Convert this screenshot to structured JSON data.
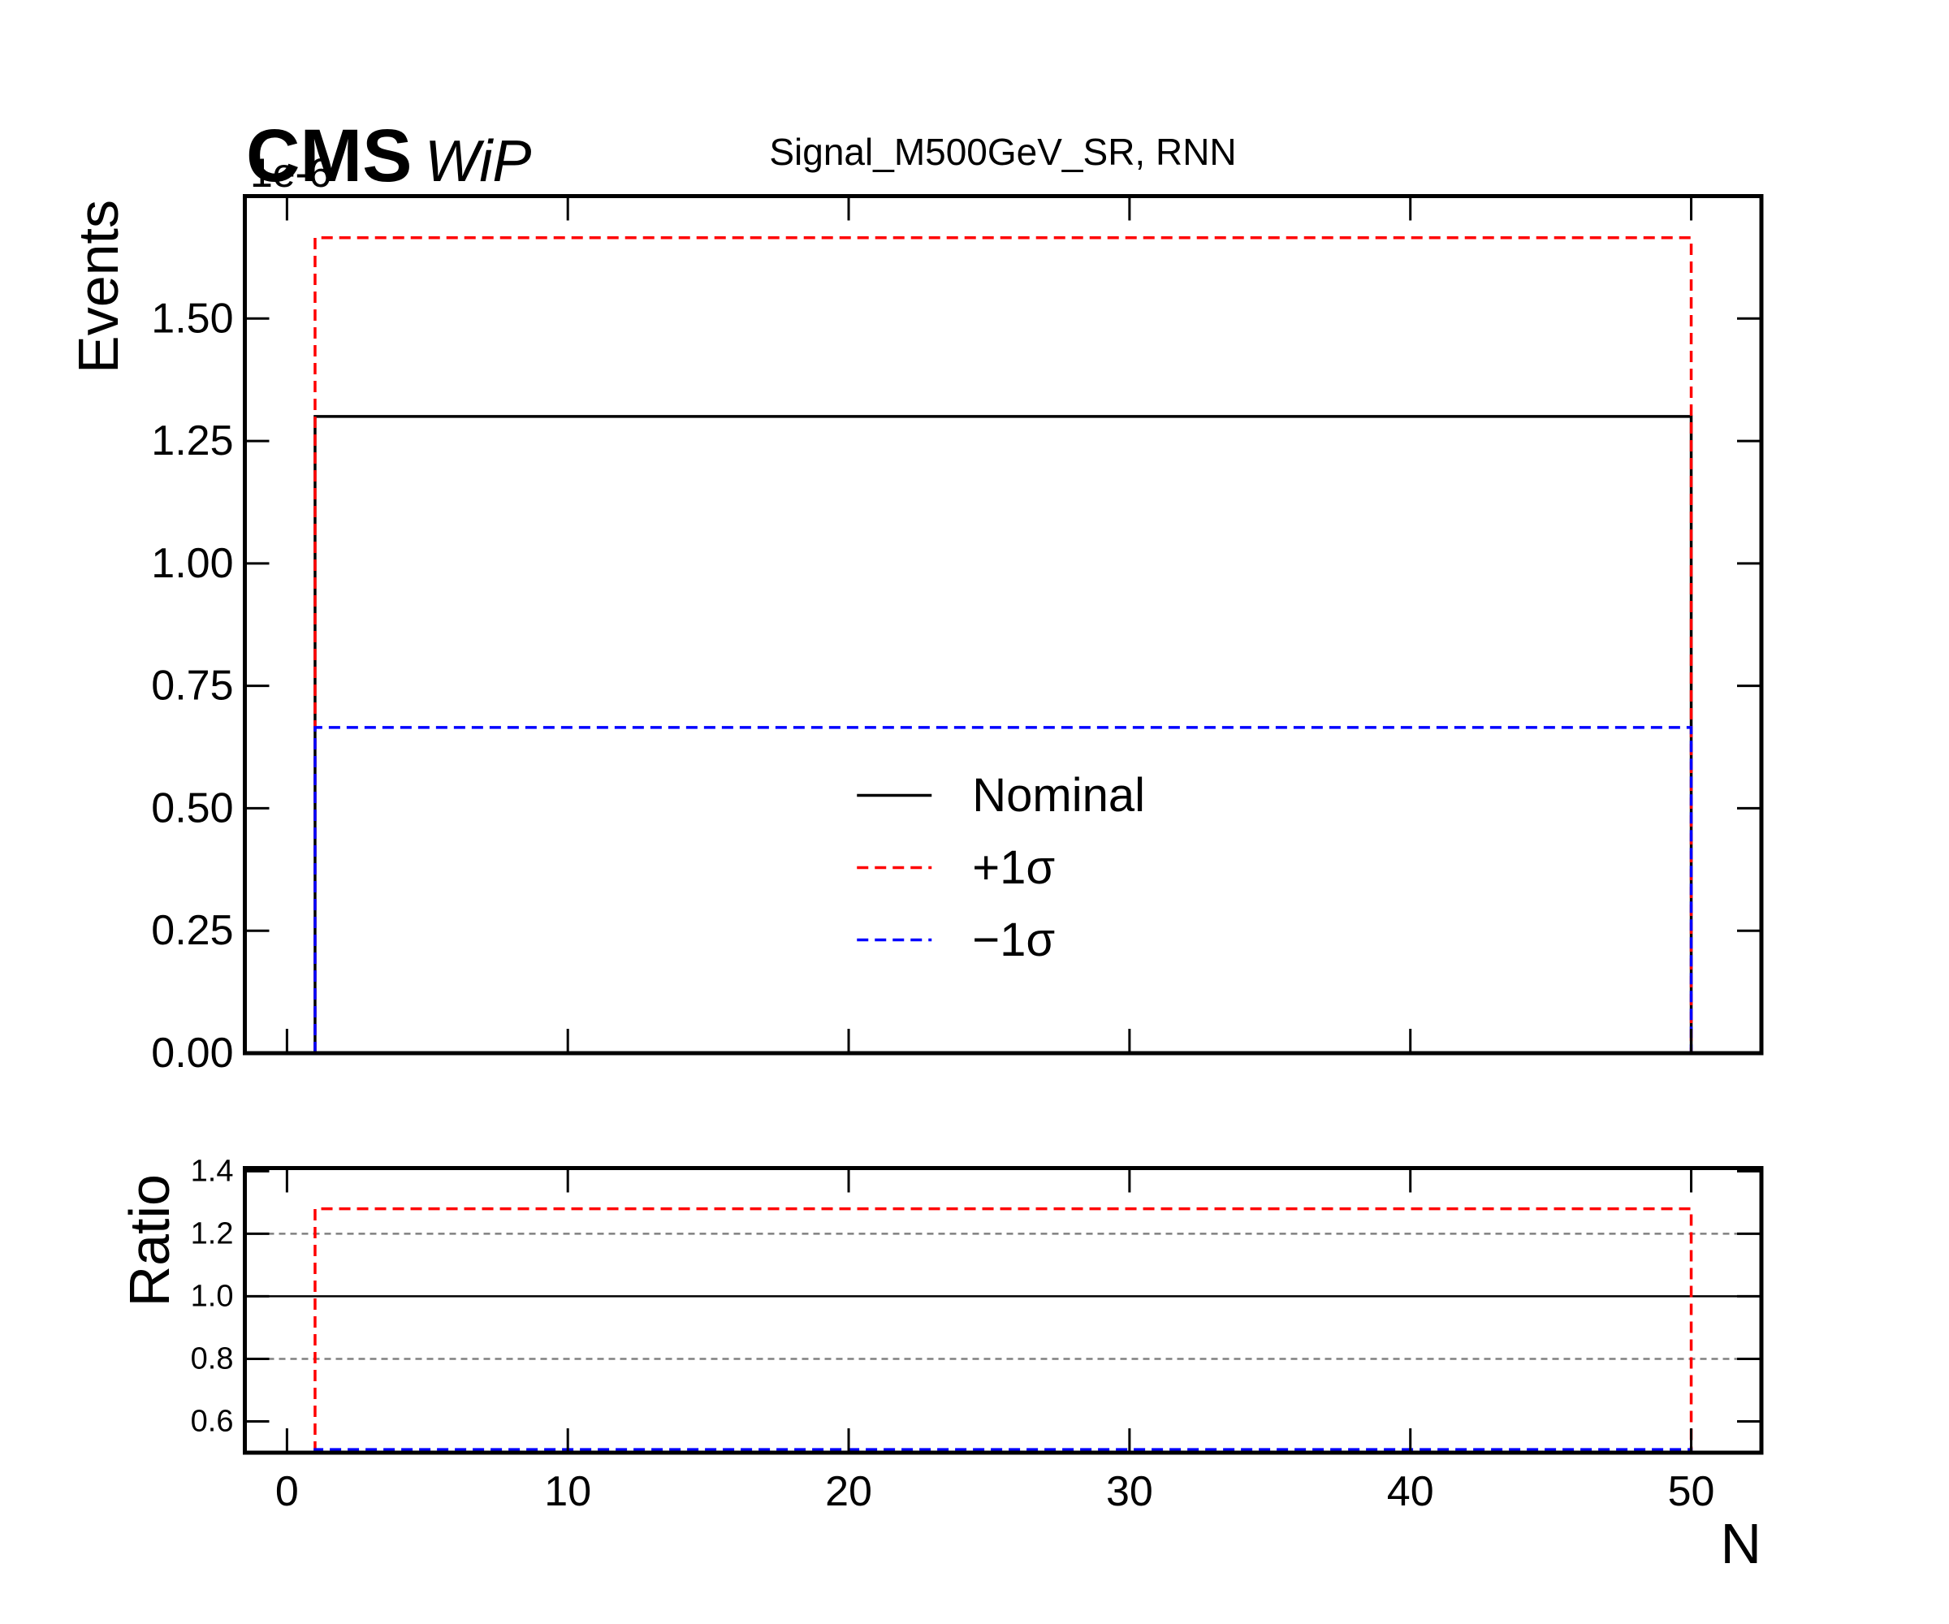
{
  "chart_data": [
    {
      "type": "step-histogram",
      "experiment_label": "CMS",
      "status_label": "WiP",
      "title": "Signal_M500GeV_SR, RNN",
      "offset_label": "1e-6",
      "ylabel": "Events",
      "xlim": [
        -1.5,
        52.5
      ],
      "xticks": [
        0,
        10,
        20,
        30,
        40,
        50
      ],
      "show_xtick_labels": false,
      "ylim": [
        0,
        1.75
      ],
      "yticks": [
        {
          "value": 0,
          "label": "0.00"
        },
        {
          "value": 0.25,
          "label": "0.25"
        },
        {
          "value": 0.5,
          "label": "0.50"
        },
        {
          "value": 0.75,
          "label": "0.75"
        },
        {
          "value": 1.0,
          "label": "1.00"
        },
        {
          "value": 1.25,
          "label": "1.25"
        },
        {
          "value": 1.5,
          "label": "1.50"
        }
      ],
      "legend": "lower center",
      "series": [
        {
          "name": "Nominal",
          "color": "#000000",
          "linestyle": "solid",
          "bins": [
            1,
            50
          ],
          "values": [
            1.3
          ]
        },
        {
          "name": "+1σ",
          "color": "#ff0000",
          "linestyle": "dashed",
          "bins": [
            1,
            50
          ],
          "values": [
            1.665
          ]
        },
        {
          "name": "−1σ",
          "color": "#0000ff",
          "linestyle": "dashed",
          "bins": [
            1,
            50
          ],
          "values": [
            0.665
          ]
        }
      ]
    },
    {
      "type": "step-histogram",
      "ylabel": "Ratio",
      "xlabel": "N",
      "xlim": [
        -1.5,
        52.5
      ],
      "xticks": [
        0,
        10,
        20,
        30,
        40,
        50
      ],
      "show_xtick_labels": true,
      "ylim": [
        0.5,
        1.41
      ],
      "yticks": [
        0.6,
        0.8,
        {
          "value": 1.0,
          "label": "1.0"
        },
        1.2,
        1.4
      ],
      "hlines": [
        {
          "value": 1.0,
          "color": "#000000",
          "linestyle": "solid"
        },
        {
          "value": 0.8,
          "color": "#808080",
          "linestyle": "dashed"
        },
        {
          "value": 1.2,
          "color": "#808080",
          "linestyle": "dashed"
        }
      ],
      "series": [
        {
          "color": "#ff0000",
          "linestyle": "dashed",
          "bins": [
            1,
            50
          ],
          "values": [
            1.28
          ]
        },
        {
          "color": "#0000ff",
          "linestyle": "dashed",
          "bins": [
            1,
            50
          ],
          "values": [
            0.51
          ]
        }
      ]
    }
  ]
}
